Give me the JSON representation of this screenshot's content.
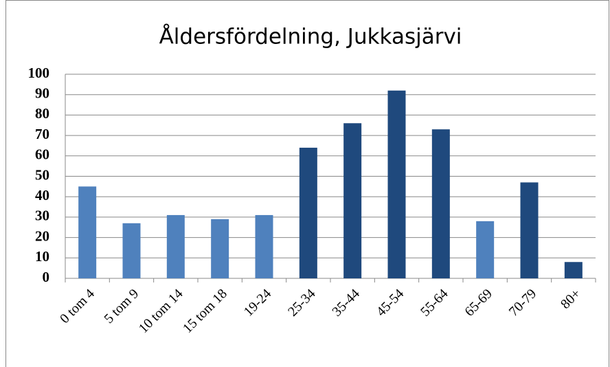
{
  "chart_data": {
    "type": "bar",
    "title": "Åldersfördelning, Jukkasjärvi",
    "categories": [
      "0 tom 4",
      "5 tom 9",
      "10 tom 14",
      "15 tom 18",
      "19-24",
      "25-34",
      "35-44",
      "45-54",
      "55-64",
      "65-69",
      "70-79",
      "80+"
    ],
    "values": [
      45,
      27,
      31,
      29,
      31,
      64,
      76,
      92,
      73,
      28,
      47,
      8
    ],
    "colors": [
      "#4f81bd",
      "#4f81bd",
      "#4f81bd",
      "#4f81bd",
      "#4f81bd",
      "#1f497d",
      "#1f497d",
      "#1f497d",
      "#1f497d",
      "#4f81bd",
      "#1f497d",
      "#1f497d"
    ],
    "ylim": [
      0,
      100
    ],
    "yticks": [
      0,
      10,
      20,
      30,
      40,
      50,
      60,
      70,
      80,
      90,
      100
    ],
    "grid": true
  }
}
